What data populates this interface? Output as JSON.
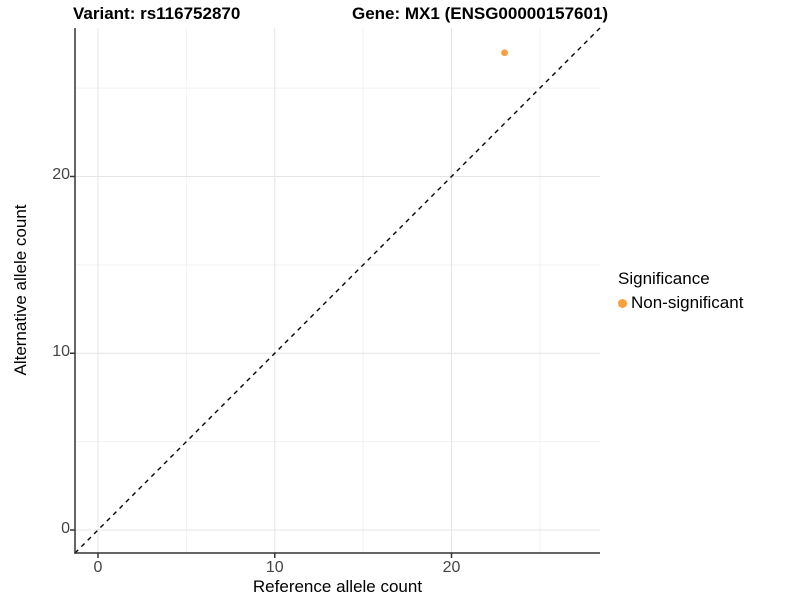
{
  "chart_data": {
    "type": "scatter",
    "title_variant": "Variant: rs116752870",
    "title_gene": "Gene: MX1 (ENSG00000157601)",
    "xlabel": "Reference allele count",
    "ylabel": "Alternative allele count",
    "xlim": [
      -1.3,
      28.4
    ],
    "ylim": [
      -1.3,
      28.4
    ],
    "xticks": [
      0,
      10,
      20
    ],
    "yticks": [
      0,
      10,
      20
    ],
    "minor_xticks": [
      5,
      15,
      25
    ],
    "minor_yticks": [
      5,
      15,
      25
    ],
    "grid": true,
    "series": [
      {
        "name": "Non-significant",
        "color": "#F9A03C",
        "points": [
          {
            "x": 23,
            "y": 27
          }
        ]
      }
    ],
    "reference_line": {
      "type": "identity",
      "slope": 1,
      "intercept": 0,
      "style": "dashed",
      "color": "#000000"
    },
    "legend": {
      "title": "Significance",
      "position": "right",
      "entries": [
        {
          "label": "Non-significant",
          "color": "#F9A03C"
        }
      ]
    }
  },
  "colors": {
    "background": "#FFFFFF",
    "axis_line": "#333333",
    "tick_label": "#444444",
    "grid_major": "#E5E5E5",
    "grid_minor": "#F2F2F2"
  }
}
